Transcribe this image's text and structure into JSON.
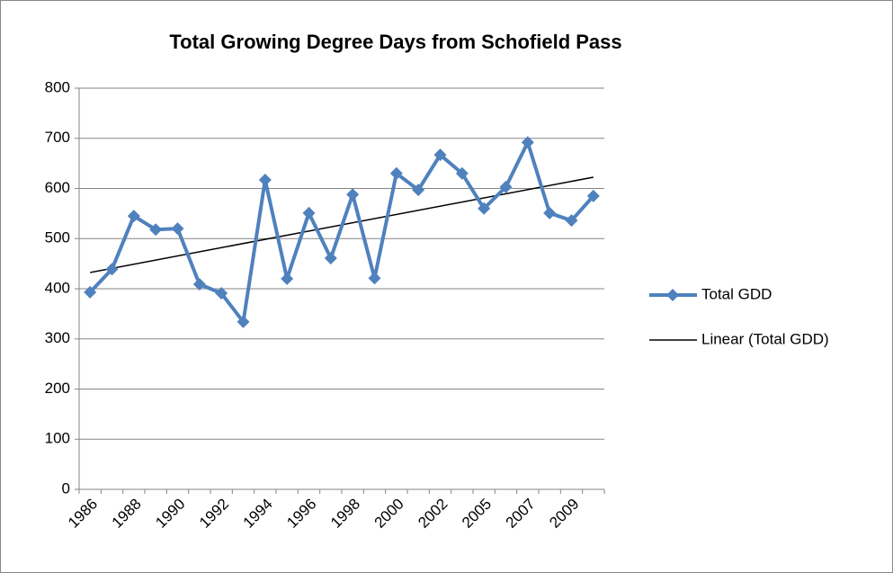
{
  "chart_data": {
    "type": "line",
    "title": "Total Growing Degree Days from Schofield Pass",
    "categories": [
      "1986",
      null,
      "1988",
      null,
      "1990",
      null,
      "1992",
      null,
      "1994",
      null,
      "1996",
      null,
      "1998",
      null,
      "2000",
      null,
      "2002",
      null,
      "2005",
      null,
      "2007",
      null,
      "2009",
      null
    ],
    "series": [
      {
        "name": "Total GDD",
        "color": "#4f81bd",
        "values": [
          393,
          439,
          545,
          518,
          520,
          409,
          391,
          334,
          617,
          420,
          551,
          461,
          588,
          421,
          630,
          597,
          667,
          630,
          560,
          603,
          692,
          551,
          536,
          585
        ]
      }
    ],
    "trendline": {
      "name": "Linear (Total GDD)",
      "color": "#000000"
    },
    "ylim": [
      0,
      800
    ],
    "yticks": [
      0,
      100,
      200,
      300,
      400,
      500,
      600,
      700,
      800
    ],
    "grid": true,
    "legend": "right"
  }
}
